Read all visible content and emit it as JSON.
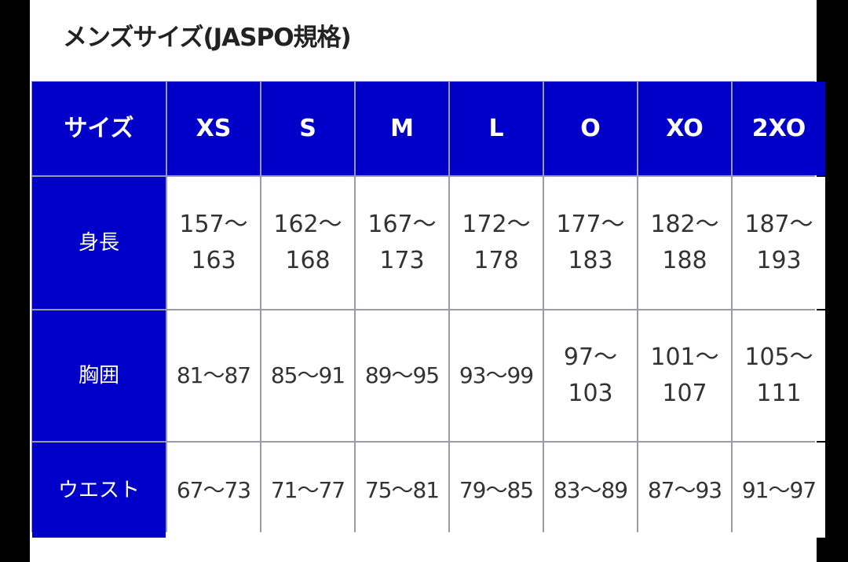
{
  "title": "メンズサイズ(JASPO規格)",
  "colors": {
    "header_bg": "#0000c8",
    "header_text": "#ffffff",
    "cell_bg": "#ffffff"
  },
  "table": {
    "corner": "サイズ",
    "sizes": [
      "XS",
      "S",
      "M",
      "L",
      "O",
      "XO",
      "2XO"
    ],
    "rows": [
      {
        "label": "身長",
        "values": [
          [
            "157〜",
            "163"
          ],
          [
            "162〜",
            "168"
          ],
          [
            "167〜",
            "173"
          ],
          [
            "172〜",
            "178"
          ],
          [
            "177〜",
            "183"
          ],
          [
            "182〜",
            "188"
          ],
          [
            "187〜",
            "193"
          ]
        ]
      },
      {
        "label": "胸囲",
        "values": [
          [
            "81〜87"
          ],
          [
            "85〜91"
          ],
          [
            "89〜95"
          ],
          [
            "93〜99"
          ],
          [
            "97〜",
            "103"
          ],
          [
            "101〜",
            "107"
          ],
          [
            "105〜",
            "111"
          ]
        ]
      },
      {
        "label": "ウエスト",
        "values": [
          [
            "67〜73"
          ],
          [
            "71〜77"
          ],
          [
            "75〜81"
          ],
          [
            "79〜85"
          ],
          [
            "83〜89"
          ],
          [
            "87〜93"
          ],
          [
            "91〜97"
          ]
        ]
      }
    ]
  }
}
